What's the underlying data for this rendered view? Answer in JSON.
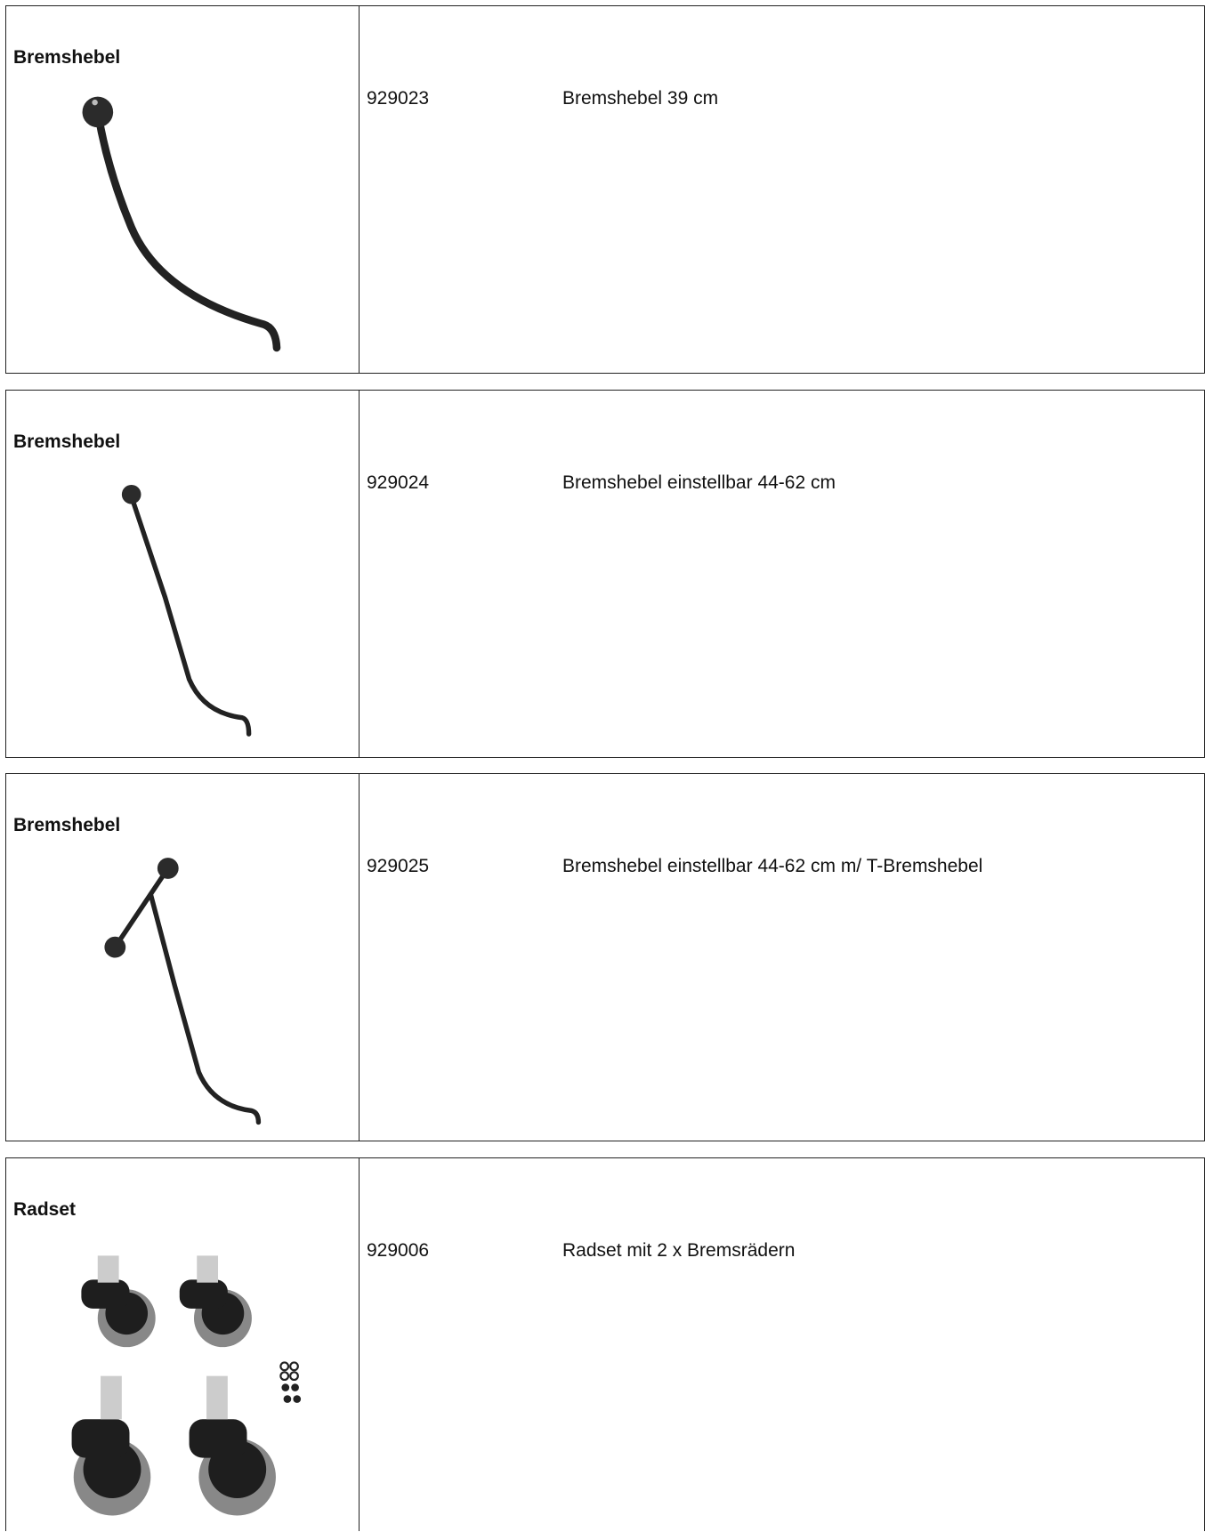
{
  "rows": [
    {
      "title": "Bremshebel",
      "part_no": "929023",
      "description": "Bremshebel 39 cm"
    },
    {
      "title": "Bremshebel",
      "part_no": "929024",
      "description": "Bremshebel einstellbar 44-62 cm"
    },
    {
      "title": "Bremshebel",
      "part_no": "929025",
      "description": "Bremshebel einstellbar 44-62 cm m/ T-Bremshebel"
    },
    {
      "title": "Radset",
      "part_no": "929006",
      "description": "Radset mit 2 x Bremsrädern"
    }
  ]
}
